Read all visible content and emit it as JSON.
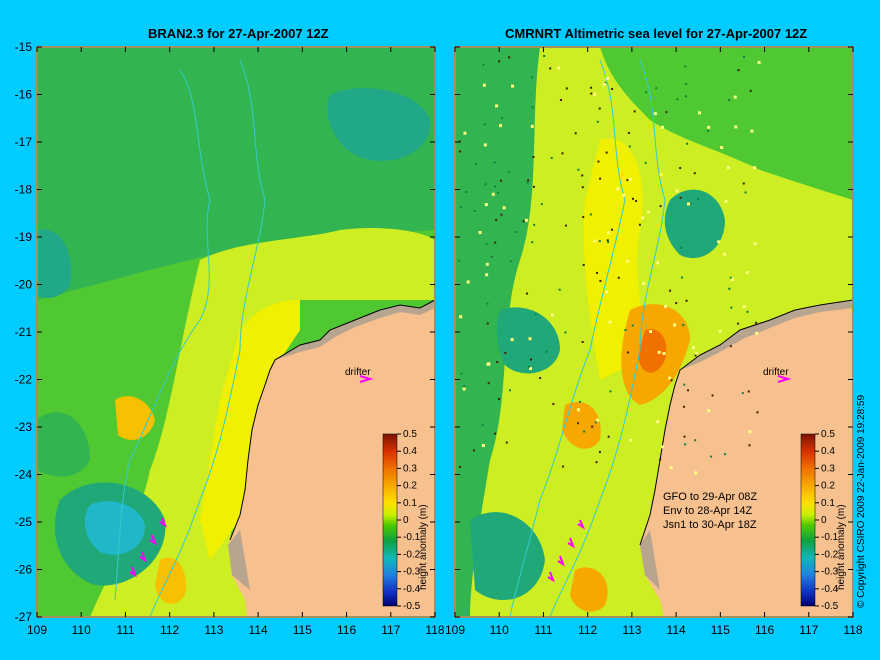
{
  "titles": {
    "left": "BRAN2.3 for 27-Apr-2007 12Z",
    "right": "CMRNRT Altimetric sea level  for 27-Apr-2007 12Z"
  },
  "copyright": "© Copyright CSIRO 2009   22-Jan-2009 19:28:59",
  "colorbar_label": "height anomaly (m)",
  "drifter_label": "drifter",
  "satellite_notes": [
    "GFO to 29-Apr 08Z",
    "Env to 28-Apr 14Z",
    "Jsn1 to 30-Apr 18Z"
  ],
  "colors": {
    "background": "#00ccff",
    "land": "#f7c08f",
    "coast_shade": "#b8a58f",
    "drifter": "#ff00ff",
    "contour": "#33cccc"
  },
  "chart_data": [
    {
      "type": "heatmap",
      "title": "BRAN2.3 for 27-Apr-2007 12Z",
      "xlim": [
        109,
        118
      ],
      "ylim": [
        -27,
        -15
      ],
      "x_ticks": [
        "109",
        "110",
        "111",
        "112",
        "113",
        "114",
        "115",
        "116",
        "117",
        "118"
      ],
      "y_ticks": [
        "-15",
        "-16",
        "-17",
        "-18",
        "-19",
        "-20",
        "-21",
        "-22",
        "-23",
        "-24",
        "-25",
        "-26",
        "-27"
      ],
      "colorbar": {
        "label": "height anomaly (m)",
        "range": [
          -0.5,
          0.5
        ],
        "ticks": [
          "0.5",
          "0.4",
          "0.3",
          "0.2",
          "0.1",
          "0",
          "-0.1",
          "-0.2",
          "-0.3",
          "-0.4",
          "-0.5"
        ]
      },
      "drifter_label": "drifter"
    },
    {
      "type": "heatmap",
      "title": "CMRNRT Altimetric sea level  for 27-Apr-2007 12Z",
      "xlim": [
        109,
        118
      ],
      "ylim": [
        -27,
        -15
      ],
      "x_ticks": [
        "109",
        "110",
        "111",
        "112",
        "113",
        "114",
        "115",
        "116",
        "117",
        "118"
      ],
      "y_ticks": [],
      "colorbar": {
        "label": "height anomaly (m)",
        "range": [
          -0.5,
          0.5
        ],
        "ticks": [
          "0.5",
          "0.4",
          "0.3",
          "0.2",
          "0.1",
          "0",
          "-0.1",
          "-0.2",
          "-0.3",
          "-0.4",
          "-0.5"
        ]
      },
      "drifter_label": "drifter",
      "annotations": [
        "GFO to 29-Apr 08Z",
        "Env to 28-Apr 14Z",
        "Jsn1 to 30-Apr 18Z"
      ]
    }
  ]
}
